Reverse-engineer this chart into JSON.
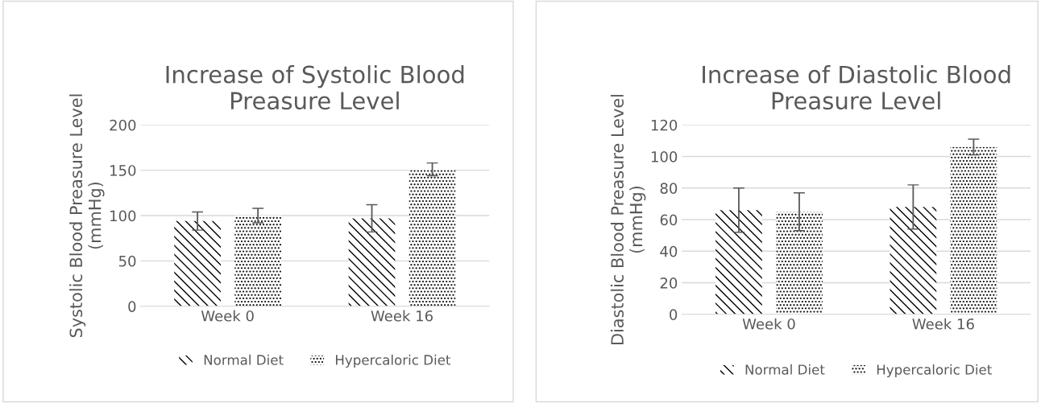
{
  "chart_data": [
    {
      "type": "bar",
      "title": "Increase of Systolic Blood\nPreasure Level",
      "ylabel": "Systolic Blood Preasure Level\n(mmHg)",
      "categories": [
        "Week 0",
        "Week 16"
      ],
      "series": [
        {
          "name": "Normal Diet",
          "color": "#000000",
          "values": [
            94,
            97
          ],
          "errors": [
            10,
            15
          ]
        },
        {
          "name": "Hypercaloric Diet",
          "color": "#000000",
          "values": [
            100,
            151
          ],
          "errors": [
            8,
            7
          ]
        }
      ],
      "ylim": [
        0,
        200
      ],
      "yticks": [
        0,
        50,
        100,
        150,
        200
      ],
      "grid": "y",
      "legend": "bottom"
    },
    {
      "type": "bar",
      "title": "Increase of Diastolic Blood\nPreasure Level",
      "ylabel": "Diastolic Blood Preasure Level\n(mmHg)",
      "categories": [
        "Week 0",
        "Week 16"
      ],
      "series": [
        {
          "name": "Normal Diet",
          "color": "#000000",
          "values": [
            66,
            68
          ],
          "errors": [
            14,
            14
          ]
        },
        {
          "name": "Hypercaloric Diet",
          "color": "#000000",
          "values": [
            65,
            106
          ],
          "errors": [
            12,
            5
          ]
        }
      ],
      "ylim": [
        0,
        120
      ],
      "yticks": [
        0,
        20,
        40,
        60,
        80,
        100,
        120
      ],
      "grid": "y",
      "legend": "bottom"
    }
  ]
}
